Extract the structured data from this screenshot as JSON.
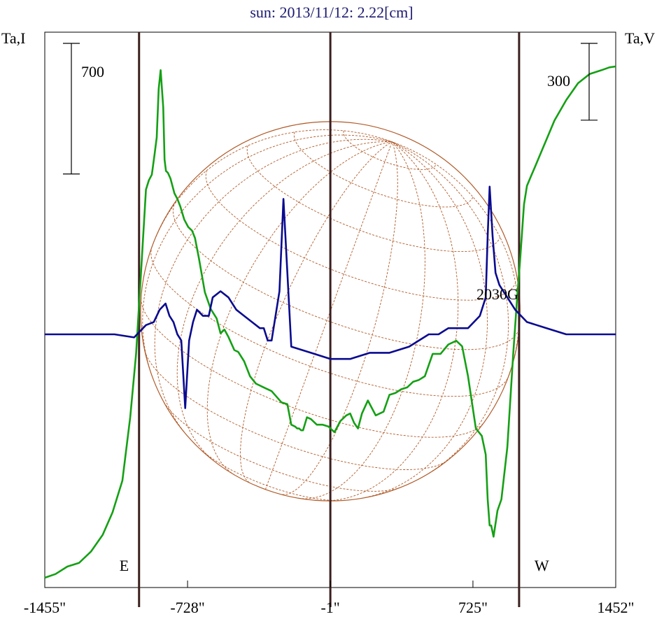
{
  "chart_data": {
    "type": "line",
    "title": "sun: 2013/11/12: 2.22[cm]",
    "colors": {
      "title": "#1a1a70",
      "intensity": "#14a014",
      "polarization": "#0a0a90",
      "disk": "#b05a28",
      "markers": "#3c1e1e",
      "text": "#000000"
    },
    "y_left_label": "Ta,I",
    "y_right_label": "Ta,V",
    "x_ticks": [
      {
        "value": -1455,
        "label": "-1455\""
      },
      {
        "value": -728,
        "label": "-728\""
      },
      {
        "value": -1,
        "label": "-1\""
      },
      {
        "value": 725,
        "label": "725\""
      },
      {
        "value": 1452,
        "label": "1452\""
      }
    ],
    "xlim": [
      -1455,
      1452
    ],
    "scale_bar_I": {
      "label": "700",
      "value": 700
    },
    "scale_bar_V": {
      "label": "300",
      "value": 300
    },
    "limb_markers": [
      {
        "label": "E",
        "x": -975
      },
      {
        "label": "",
        "x": -1
      },
      {
        "label": "W",
        "x": 960
      }
    ],
    "annotations": [
      {
        "text": "2030G",
        "x": 900,
        "I": 1320
      }
    ],
    "disk": {
      "center_x": -1,
      "radius_arcsec": 966
    },
    "ylim_I": [
      0,
      2800
    ],
    "ylim_V": [
      -1200,
      1200
    ],
    "series": [
      {
        "name": "I",
        "axis": "left",
        "x": [
          -1455,
          -1400,
          -1340,
          -1280,
          -1220,
          -1160,
          -1110,
          -1060,
          -1020,
          -990,
          -960,
          -940,
          -925,
          -910,
          -897,
          -885,
          -875,
          -865,
          -852,
          -845,
          -838,
          -828,
          -815,
          -795,
          -780,
          -765,
          -745,
          -725,
          -705,
          -690,
          -670,
          -640,
          -610,
          -580,
          -560,
          -540,
          -520,
          -490,
          -470,
          -440,
          -410,
          -380,
          -340,
          -300,
          -250,
          -220,
          -200,
          -180,
          -170,
          -160,
          -150,
          -140,
          -120,
          -100,
          -70,
          -40,
          -10,
          20,
          50,
          80,
          100,
          120,
          140,
          160,
          190,
          230,
          270,
          300,
          330,
          360,
          390,
          420,
          450,
          480,
          520,
          560,
          600,
          640,
          670,
          700,
          740,
          770,
          790,
          800,
          810,
          818,
          830,
          850,
          870,
          900,
          930,
          950,
          965,
          975,
          985,
          1000,
          1020,
          1040,
          1060,
          1080,
          1100,
          1140,
          1200,
          1260,
          1320,
          1380,
          1420,
          1452
        ],
        "y": [
          0,
          20,
          60,
          80,
          140,
          230,
          350,
          520,
          860,
          1200,
          1720,
          2080,
          2130,
          2160,
          2260,
          2360,
          2620,
          2720,
          2520,
          2240,
          2180,
          2170,
          2140,
          2060,
          2030,
          1990,
          1920,
          1880,
          1860,
          1820,
          1710,
          1530,
          1440,
          1390,
          1310,
          1330,
          1290,
          1220,
          1210,
          1160,
          1080,
          1040,
          1020,
          1000,
          940,
          930,
          820,
          810,
          800,
          800,
          790,
          790,
          860,
          850,
          820,
          820,
          810,
          780,
          840,
          870,
          880,
          830,
          800,
          880,
          950,
          870,
          890,
          980,
          990,
          1010,
          1020,
          1050,
          1060,
          1080,
          1200,
          1200,
          1250,
          1270,
          1240,
          1080,
          800,
          760,
          660,
          420,
          280,
          280,
          220,
          360,
          420,
          700,
          1200,
          1500,
          1700,
          1850,
          2000,
          2100,
          2150,
          2200,
          2250,
          2300,
          2350,
          2450,
          2560,
          2650,
          2700,
          2720,
          2735,
          2740
        ]
      },
      {
        "name": "V",
        "axis": "right",
        "x": [
          -1455,
          -1100,
          -1000,
          -940,
          -900,
          -870,
          -840,
          -820,
          -800,
          -780,
          -760,
          -740,
          -720,
          -700,
          -680,
          -650,
          -620,
          -600,
          -560,
          -520,
          -480,
          -440,
          -400,
          -360,
          -340,
          -320,
          -300,
          -280,
          -260,
          -240,
          -200,
          -100,
          0,
          100,
          200,
          300,
          400,
          500,
          550,
          600,
          700,
          760,
          790,
          800,
          810,
          825,
          840,
          860,
          880,
          900,
          940,
          1000,
          1100,
          1200,
          1300,
          1452
        ],
        "y": [
          0,
          0,
          -5,
          15,
          20,
          40,
          50,
          30,
          20,
          0,
          -10,
          -120,
          -10,
          20,
          40,
          30,
          30,
          60,
          70,
          60,
          40,
          30,
          20,
          10,
          10,
          -10,
          -10,
          30,
          70,
          220,
          -20,
          -30,
          -40,
          -40,
          -30,
          -30,
          -20,
          0,
          0,
          10,
          10,
          30,
          60,
          160,
          240,
          160,
          100,
          80,
          70,
          60,
          40,
          20,
          10,
          0,
          0,
          0
        ]
      }
    ]
  }
}
